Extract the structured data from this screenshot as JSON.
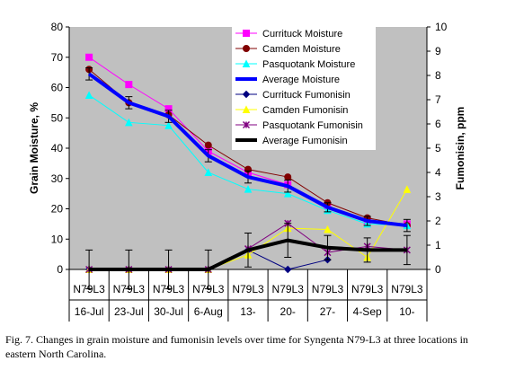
{
  "chart_data": {
    "type": "line",
    "title": "",
    "ylabel": "Grain Moisture, %",
    "y2label": "Fumonisin, ppm",
    "ylim": [
      0,
      80
    ],
    "y2lim": [
      0,
      10
    ],
    "yticks": [
      "0",
      "10",
      "20",
      "30",
      "40",
      "50",
      "60",
      "70",
      "80"
    ],
    "y2ticks": [
      "0",
      "1",
      "2",
      "3",
      "4",
      "5",
      "6",
      "7",
      "8",
      "9",
      "10"
    ],
    "categories_row1": [
      "N79L3",
      "N79L3",
      "N79L3",
      "N79L3",
      "N79L3",
      "N79L3",
      "N79L3",
      "N79L3",
      "N79L3"
    ],
    "categories_row2": [
      "16-Jul",
      "23-Jul",
      "30-Jul",
      "6-Aug",
      "13-",
      "20-",
      "27-",
      "4-Sep",
      "10-"
    ],
    "grid": false,
    "plot_background": "#c0c0c0",
    "legend_position": "top-right inside plot",
    "series": [
      {
        "name": "Currituck Moisture",
        "axis": "left",
        "color": "#ff00ff",
        "marker": "square",
        "values": [
          70,
          61,
          53,
          39,
          32,
          28,
          21,
          16,
          15
        ]
      },
      {
        "name": "Camden Moisture",
        "axis": "left",
        "color": "#800000",
        "marker": "circle",
        "values": [
          66,
          55,
          51,
          41,
          33,
          30.5,
          22,
          17,
          14.5
        ]
      },
      {
        "name": "Pasquotank Moisture",
        "axis": "left",
        "color": "#00ffff",
        "marker": "triangle",
        "values": [
          57.5,
          48.5,
          47.5,
          32,
          26.5,
          25,
          19.5,
          15,
          14.5
        ]
      },
      {
        "name": "Average Moisture",
        "axis": "left",
        "color": "#0000ff",
        "marker": "none",
        "width": "thick",
        "values": [
          64.5,
          55,
          50.5,
          37.5,
          30.5,
          27.5,
          20.5,
          16,
          14.5
        ],
        "error": [
          2,
          2,
          2,
          2,
          2,
          2,
          1.5,
          1.5,
          2
        ]
      },
      {
        "name": "Currituck Fumonisin",
        "axis": "right",
        "color": "#000080",
        "marker": "diamond",
        "values": [
          0,
          0,
          0,
          0,
          0.8,
          0,
          0.4,
          null,
          null
        ]
      },
      {
        "name": "Camden Fumonisin",
        "axis": "right",
        "color": "#ffff00",
        "marker": "triangle",
        "values": [
          0,
          0,
          0,
          0,
          0.6,
          1.7,
          1.65,
          0.5,
          3.3
        ]
      },
      {
        "name": "Pasquotank Fumonisin",
        "axis": "right",
        "color": "#800080",
        "marker": "star",
        "values": [
          0,
          0,
          0,
          0,
          0.85,
          1.9,
          0.7,
          0.95,
          0.8
        ]
      },
      {
        "name": "Average Fumonisin",
        "axis": "right",
        "color": "#000000",
        "marker": "none",
        "width": "thick",
        "values": [
          0,
          0,
          0,
          0,
          0.8,
          1.2,
          0.9,
          0.8,
          0.8
        ],
        "error": [
          0.8,
          0.8,
          0.8,
          0.8,
          0.7,
          0.7,
          0.5,
          0.5,
          0.6
        ]
      }
    ]
  },
  "caption": "Fig. 7.  Changes in grain moisture and fumonisin levels over time for Syngenta N79-L3 at three locations in eastern North Carolina."
}
